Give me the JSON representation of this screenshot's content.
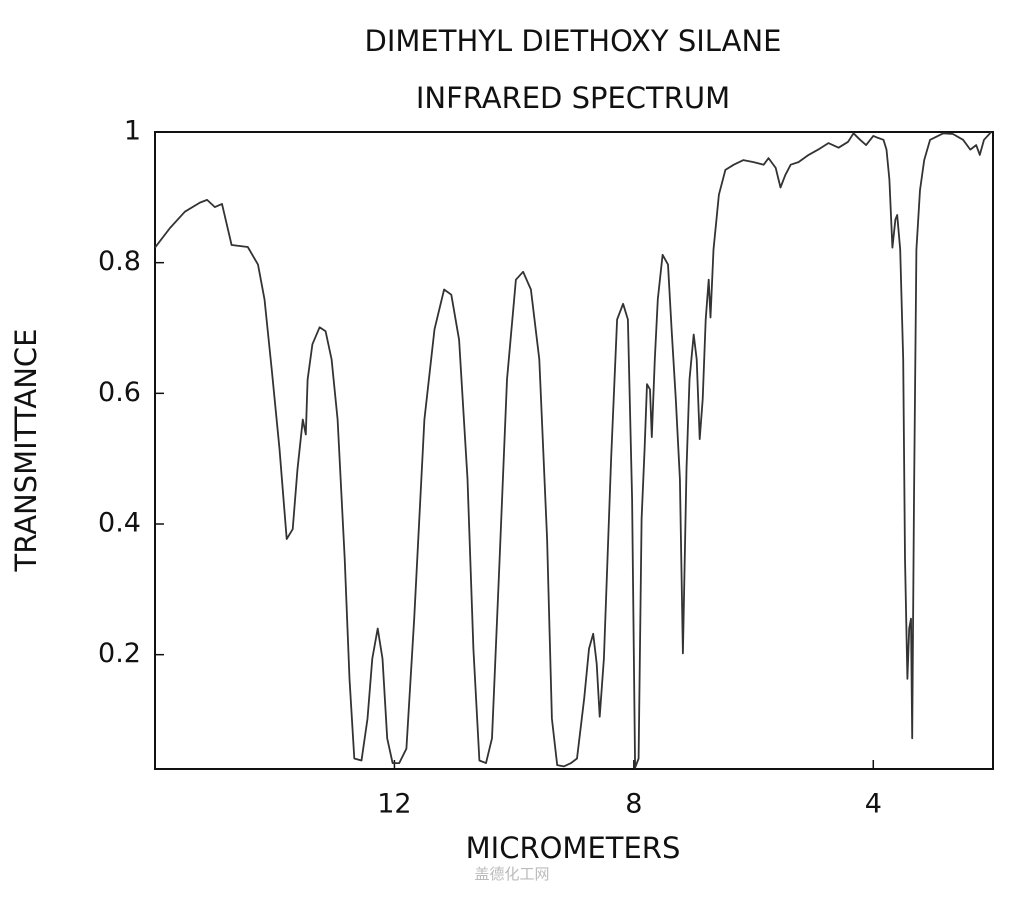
{
  "chart_data": {
    "type": "line",
    "title": "DIMETHYL DIETHOXY SILANE",
    "subtitle": "INFRARED SPECTRUM",
    "x_label": "MICROMETERS",
    "y_label": "TRANSMITTANCE",
    "watermark": "盖德化工网",
    "color": "#333333",
    "xlim": [
      16,
      2
    ],
    "ylim": [
      0.025,
      1
    ],
    "xticks": [
      12,
      8,
      4
    ],
    "yticks": [
      0.2,
      0.4,
      0.6,
      0.8,
      1
    ],
    "x": [
      16.0,
      15.75,
      15.5,
      15.25,
      15.13,
      15.0,
      14.88,
      14.72,
      14.45,
      14.28,
      14.17,
      14.05,
      13.92,
      13.8,
      13.7,
      13.62,
      13.53,
      13.48,
      13.45,
      13.37,
      13.25,
      13.15,
      13.05,
      12.95,
      12.83,
      12.75,
      12.67,
      12.55,
      12.45,
      12.37,
      12.28,
      12.2,
      12.12,
      12.03,
      11.92,
      11.8,
      11.67,
      11.5,
      11.33,
      11.17,
      11.05,
      10.92,
      10.78,
      10.68,
      10.58,
      10.47,
      10.37,
      10.25,
      10.12,
      9.97,
      9.85,
      9.72,
      9.58,
      9.45,
      9.37,
      9.28,
      9.17,
      9.05,
      8.95,
      8.83,
      8.75,
      8.68,
      8.62,
      8.57,
      8.5,
      8.38,
      8.28,
      8.18,
      8.1,
      8.03,
      7.98,
      7.92,
      7.87,
      7.82,
      7.78,
      7.73,
      7.7,
      7.65,
      7.6,
      7.52,
      7.43,
      7.37,
      7.3,
      7.23,
      7.18,
      7.12,
      7.07,
      7.0,
      6.95,
      6.9,
      6.85,
      6.8,
      6.75,
      6.72,
      6.67,
      6.58,
      6.47,
      6.33,
      6.17,
      6.0,
      5.83,
      5.75,
      5.63,
      5.55,
      5.47,
      5.38,
      5.25,
      5.08,
      4.92,
      4.75,
      4.58,
      4.42,
      4.33,
      4.22,
      4.12,
      4.0,
      3.92,
      3.83,
      3.78,
      3.73,
      3.68,
      3.63,
      3.6,
      3.55,
      3.5,
      3.47,
      3.43,
      3.4,
      3.37,
      3.35,
      3.32,
      3.28,
      3.22,
      3.15,
      3.05,
      2.83,
      2.67,
      2.5,
      2.38,
      2.28,
      2.22,
      2.15,
      2.03
    ],
    "values": [
      0.823,
      0.853,
      0.878,
      0.892,
      0.896,
      0.885,
      0.89,
      0.827,
      0.824,
      0.797,
      0.744,
      0.637,
      0.515,
      0.377,
      0.392,
      0.484,
      0.56,
      0.537,
      0.621,
      0.675,
      0.701,
      0.695,
      0.652,
      0.56,
      0.347,
      0.163,
      0.041,
      0.038,
      0.102,
      0.194,
      0.24,
      0.194,
      0.072,
      0.034,
      0.034,
      0.056,
      0.255,
      0.56,
      0.698,
      0.759,
      0.751,
      0.682,
      0.469,
      0.209,
      0.038,
      0.034,
      0.072,
      0.331,
      0.621,
      0.774,
      0.786,
      0.759,
      0.652,
      0.377,
      0.102,
      0.031,
      0.029,
      0.034,
      0.041,
      0.133,
      0.209,
      0.232,
      0.186,
      0.105,
      0.194,
      0.499,
      0.713,
      0.737,
      0.713,
      0.438,
      0.027,
      0.041,
      0.408,
      0.515,
      0.614,
      0.606,
      0.533,
      0.652,
      0.744,
      0.812,
      0.797,
      0.698,
      0.591,
      0.469,
      0.202,
      0.484,
      0.621,
      0.69,
      0.652,
      0.53,
      0.591,
      0.713,
      0.774,
      0.716,
      0.82,
      0.904,
      0.942,
      0.95,
      0.957,
      0.954,
      0.95,
      0.96,
      0.945,
      0.915,
      0.934,
      0.95,
      0.954,
      0.965,
      0.973,
      0.983,
      0.976,
      0.985,
      0.998,
      0.988,
      0.98,
      0.994,
      0.991,
      0.988,
      0.973,
      0.927,
      0.823,
      0.866,
      0.873,
      0.82,
      0.652,
      0.347,
      0.163,
      0.24,
      0.255,
      0.072,
      0.438,
      0.82,
      0.911,
      0.957,
      0.988,
      0.998,
      0.997,
      0.988,
      0.973,
      0.98,
      0.965,
      0.988,
      1
    ]
  }
}
